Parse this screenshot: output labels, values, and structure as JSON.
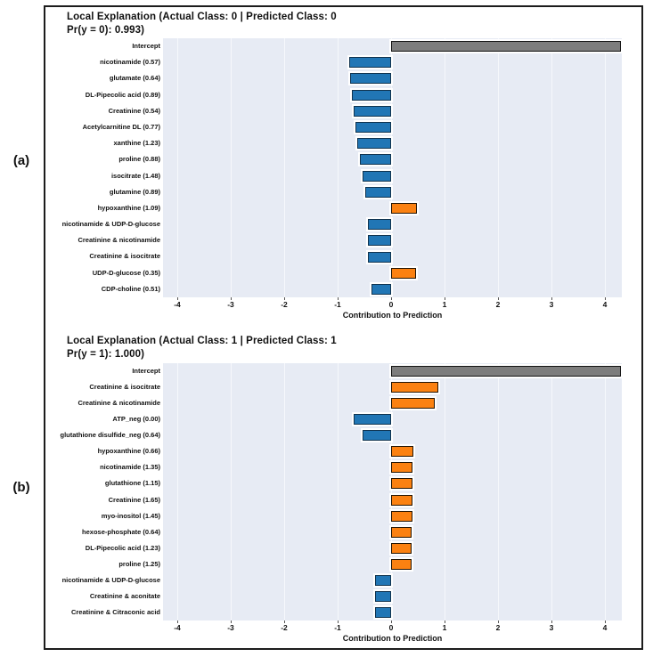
{
  "figure_labels": {
    "panel_a_tag": "(a)",
    "panel_b_tag": "(b)"
  },
  "palette": {
    "blue": "#2176b5",
    "blue_edge": "#10334f",
    "orange": "#fb8111",
    "orange_edge": "#241504",
    "gray": "#7d7d7d",
    "gray_edge": "#141414",
    "plot_bg": "#e7ebf4",
    "grid": "#f6f8fc"
  },
  "chart_data": [
    {
      "id": "a",
      "type": "bar",
      "orientation": "horizontal",
      "title_line1": "Local Explanation (Actual Class: 0 | Predicted Class: 0",
      "title_line2": "Pr(y = 0): 0.993)",
      "xlabel": "Contribution to Prediction",
      "xlim": [
        -4.27,
        4.32
      ],
      "xticks": [
        -4,
        -3,
        -2,
        -1,
        0,
        1,
        2,
        3,
        4
      ],
      "grid": true,
      "categories": [
        "Intercept",
        "nicotinamide (0.57)",
        "glutamate (0.64)",
        "DL-Pipecolic acid (0.89)",
        "Creatinine (0.54)",
        "Acetylcarnitine DL (0.77)",
        "xanthine (1.23)",
        "proline (0.88)",
        "isocitrate (1.48)",
        "glutamine (0.89)",
        "hypoxanthine (1.09)",
        "nicotinamide & UDP-D-glucose",
        "Creatinine & nicotinamide",
        "Creatinine & isocitrate",
        "UDP-D-glucose (0.35)",
        "CDP-choline (0.51)"
      ],
      "values": [
        4.3,
        -0.78,
        -0.77,
        -0.73,
        -0.7,
        -0.67,
        -0.63,
        -0.58,
        -0.53,
        -0.48,
        0.49,
        -0.44,
        -0.44,
        -0.44,
        0.46,
        -0.36
      ],
      "colors": [
        "gray",
        "blue",
        "blue",
        "blue",
        "blue",
        "blue",
        "blue",
        "blue",
        "blue",
        "blue",
        "orange",
        "blue",
        "blue",
        "blue",
        "orange",
        "blue"
      ]
    },
    {
      "id": "b",
      "type": "bar",
      "orientation": "horizontal",
      "title_line1": "Local Explanation (Actual Class: 1 | Predicted Class: 1",
      "title_line2": "Pr(y = 1): 1.000)",
      "xlabel": "Contribution to Prediction",
      "xlim": [
        -4.27,
        4.32
      ],
      "xticks": [
        -4,
        -3,
        -2,
        -1,
        0,
        1,
        2,
        3,
        4
      ],
      "grid": true,
      "categories": [
        "Intercept",
        "Creatinine & isocitrate",
        "Creatinine & nicotinamide",
        "ATP_neg (0.00)",
        "glutathione disulfide_neg (0.64)",
        "hypoxanthine (0.66)",
        "nicotinamide (1.35)",
        "glutathione (1.15)",
        "Creatinine (1.65)",
        "myo-inositol (1.45)",
        "hexose-phosphate (0.64)",
        "DL-Pipecolic acid (1.23)",
        "proline (1.25)",
        "nicotinamide & UDP-D-glucose",
        "Creatinine & aconitate",
        "Creatinine & Citraconic acid"
      ],
      "values": [
        4.3,
        0.88,
        0.82,
        -0.7,
        -0.53,
        0.42,
        0.4,
        0.4,
        0.4,
        0.4,
        0.38,
        0.38,
        0.38,
        -0.3,
        -0.3,
        -0.3
      ],
      "colors": [
        "gray",
        "orange",
        "orange",
        "blue",
        "blue",
        "orange",
        "orange",
        "orange",
        "orange",
        "orange",
        "orange",
        "orange",
        "orange",
        "blue",
        "blue",
        "blue"
      ]
    }
  ]
}
